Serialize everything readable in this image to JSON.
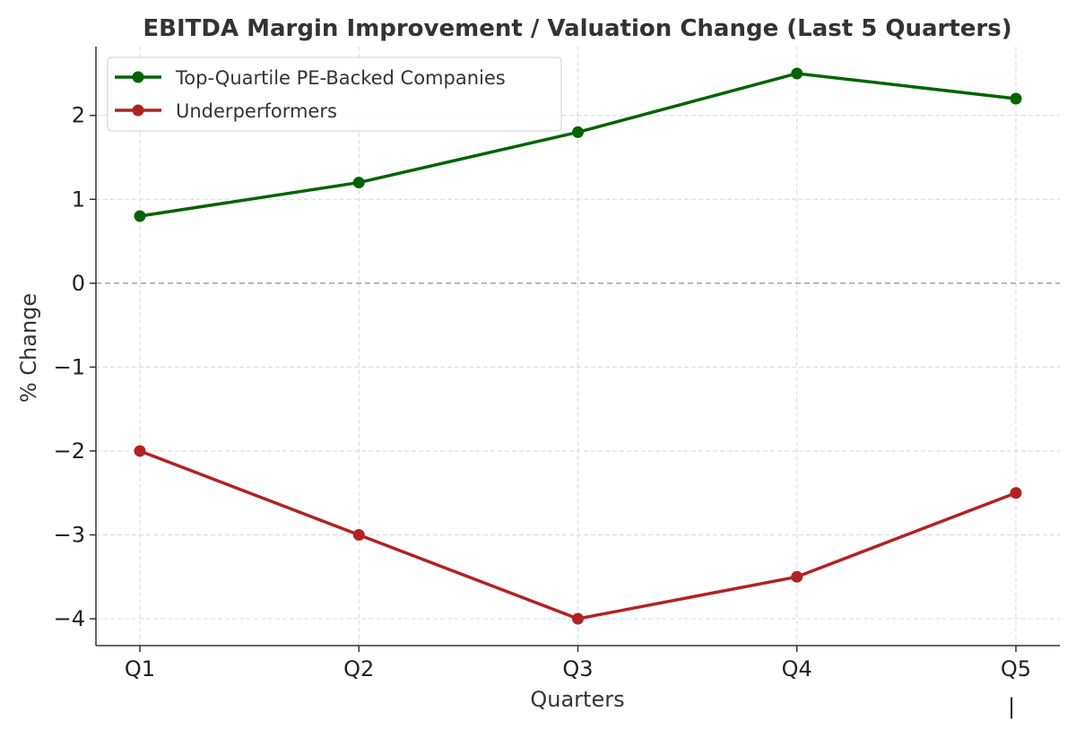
{
  "chart_data": {
    "type": "line",
    "title": "EBITDA Margin Improvement / Valuation Change (Last 5 Quarters)",
    "xlabel": "Quarters",
    "ylabel": "% Change",
    "categories": [
      "Q1",
      "Q2",
      "Q3",
      "Q4",
      "Q5"
    ],
    "series": [
      {
        "name": "Top-Quartile PE-Backed Companies",
        "color": "#006400",
        "values": [
          0.8,
          1.2,
          1.8,
          2.5,
          2.2
        ]
      },
      {
        "name": "Underperformers",
        "color": "#b22222",
        "values": [
          -2.0,
          -3.0,
          -4.0,
          -3.5,
          -2.5
        ]
      }
    ],
    "ylim": [
      -4.32,
      2.82
    ],
    "yticks": [
      2,
      1,
      0,
      -1,
      -2,
      -3,
      -4
    ],
    "ytick_labels": [
      "2",
      "1",
      "0",
      "−1",
      "−2",
      "−3",
      "−4"
    ],
    "grid": true,
    "zero_reference_line": true,
    "legend_position": "top-left"
  },
  "footer_mark": "|"
}
